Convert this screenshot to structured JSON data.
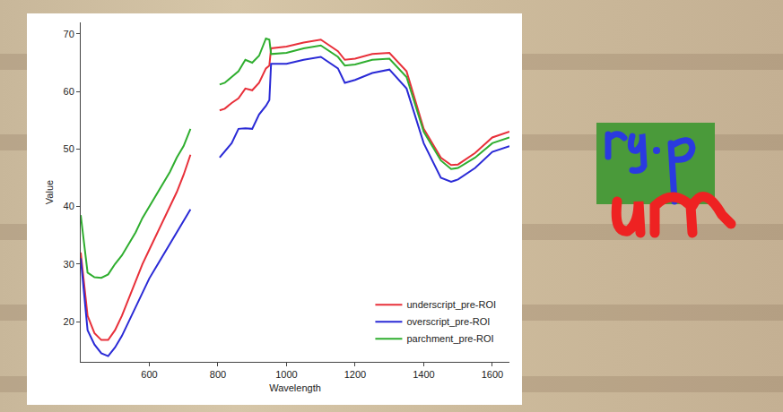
{
  "chart_data": {
    "type": "line",
    "x_label": "Wavelength",
    "y_label": "Value",
    "x": [
      400,
      420,
      440,
      460,
      480,
      500,
      520,
      540,
      560,
      580,
      600,
      620,
      640,
      660,
      680,
      700,
      720,
      760,
      805,
      820,
      840,
      860,
      880,
      900,
      920,
      940,
      950,
      955,
      1000,
      1050,
      1100,
      1150,
      1170,
      1200,
      1250,
      1300,
      1350,
      1400,
      1450,
      1480,
      1500,
      1550,
      1600,
      1650
    ],
    "series": [
      {
        "name": "underscript_pre-ROI",
        "color": "#e8303a",
        "values": [
          32,
          21,
          18,
          16.8,
          16.8,
          18.5,
          21,
          24,
          27,
          30,
          32.5,
          35,
          37.5,
          40,
          42.5,
          45.5,
          49,
          null,
          56.7,
          57,
          58,
          58.8,
          60.5,
          60.2,
          61.5,
          64,
          64.5,
          67.5,
          67.8,
          68.5,
          69,
          67,
          65.5,
          65.7,
          66.5,
          66.7,
          63.5,
          53.5,
          48.5,
          47.2,
          47.3,
          49.3,
          52,
          53
        ]
      },
      {
        "name": "overscript_pre-ROI",
        "color": "#2a2ad6",
        "values": [
          31,
          18.5,
          16,
          14.5,
          14,
          15.5,
          17.5,
          20,
          22.5,
          25,
          27.5,
          29.5,
          31.5,
          33.5,
          35.5,
          37.5,
          39.5,
          null,
          48.5,
          49.5,
          51,
          53.5,
          53.6,
          53.5,
          56,
          57.5,
          58.5,
          64.8,
          64.8,
          65.5,
          66,
          64,
          61.5,
          62,
          63.2,
          63.8,
          60.5,
          51,
          45,
          44.3,
          44.7,
          46.7,
          49.5,
          50.5
        ]
      },
      {
        "name": "parchment_pre-ROI",
        "color": "#2fae2f",
        "values": [
          38.5,
          28.5,
          27.7,
          27.6,
          28.2,
          30,
          31.5,
          33.5,
          35.5,
          38,
          40,
          42,
          44,
          46,
          48.5,
          50.5,
          53.5,
          null,
          61.2,
          61.5,
          62.5,
          63.5,
          65.5,
          65,
          66.2,
          69.2,
          69,
          66.5,
          66.7,
          67.5,
          68,
          66,
          64.5,
          64.7,
          65.5,
          65.7,
          62.5,
          53,
          48,
          46.5,
          46.7,
          48.5,
          51,
          52
        ]
      }
    ],
    "xlim": [
      400,
      1650
    ],
    "xticks": [
      600,
      800,
      1000,
      1200,
      1400,
      1600
    ],
    "ylim": [
      13,
      72
    ],
    "yticks": [
      20,
      30,
      40,
      50,
      60,
      70
    ],
    "grid": false,
    "legend": "lower right"
  }
}
